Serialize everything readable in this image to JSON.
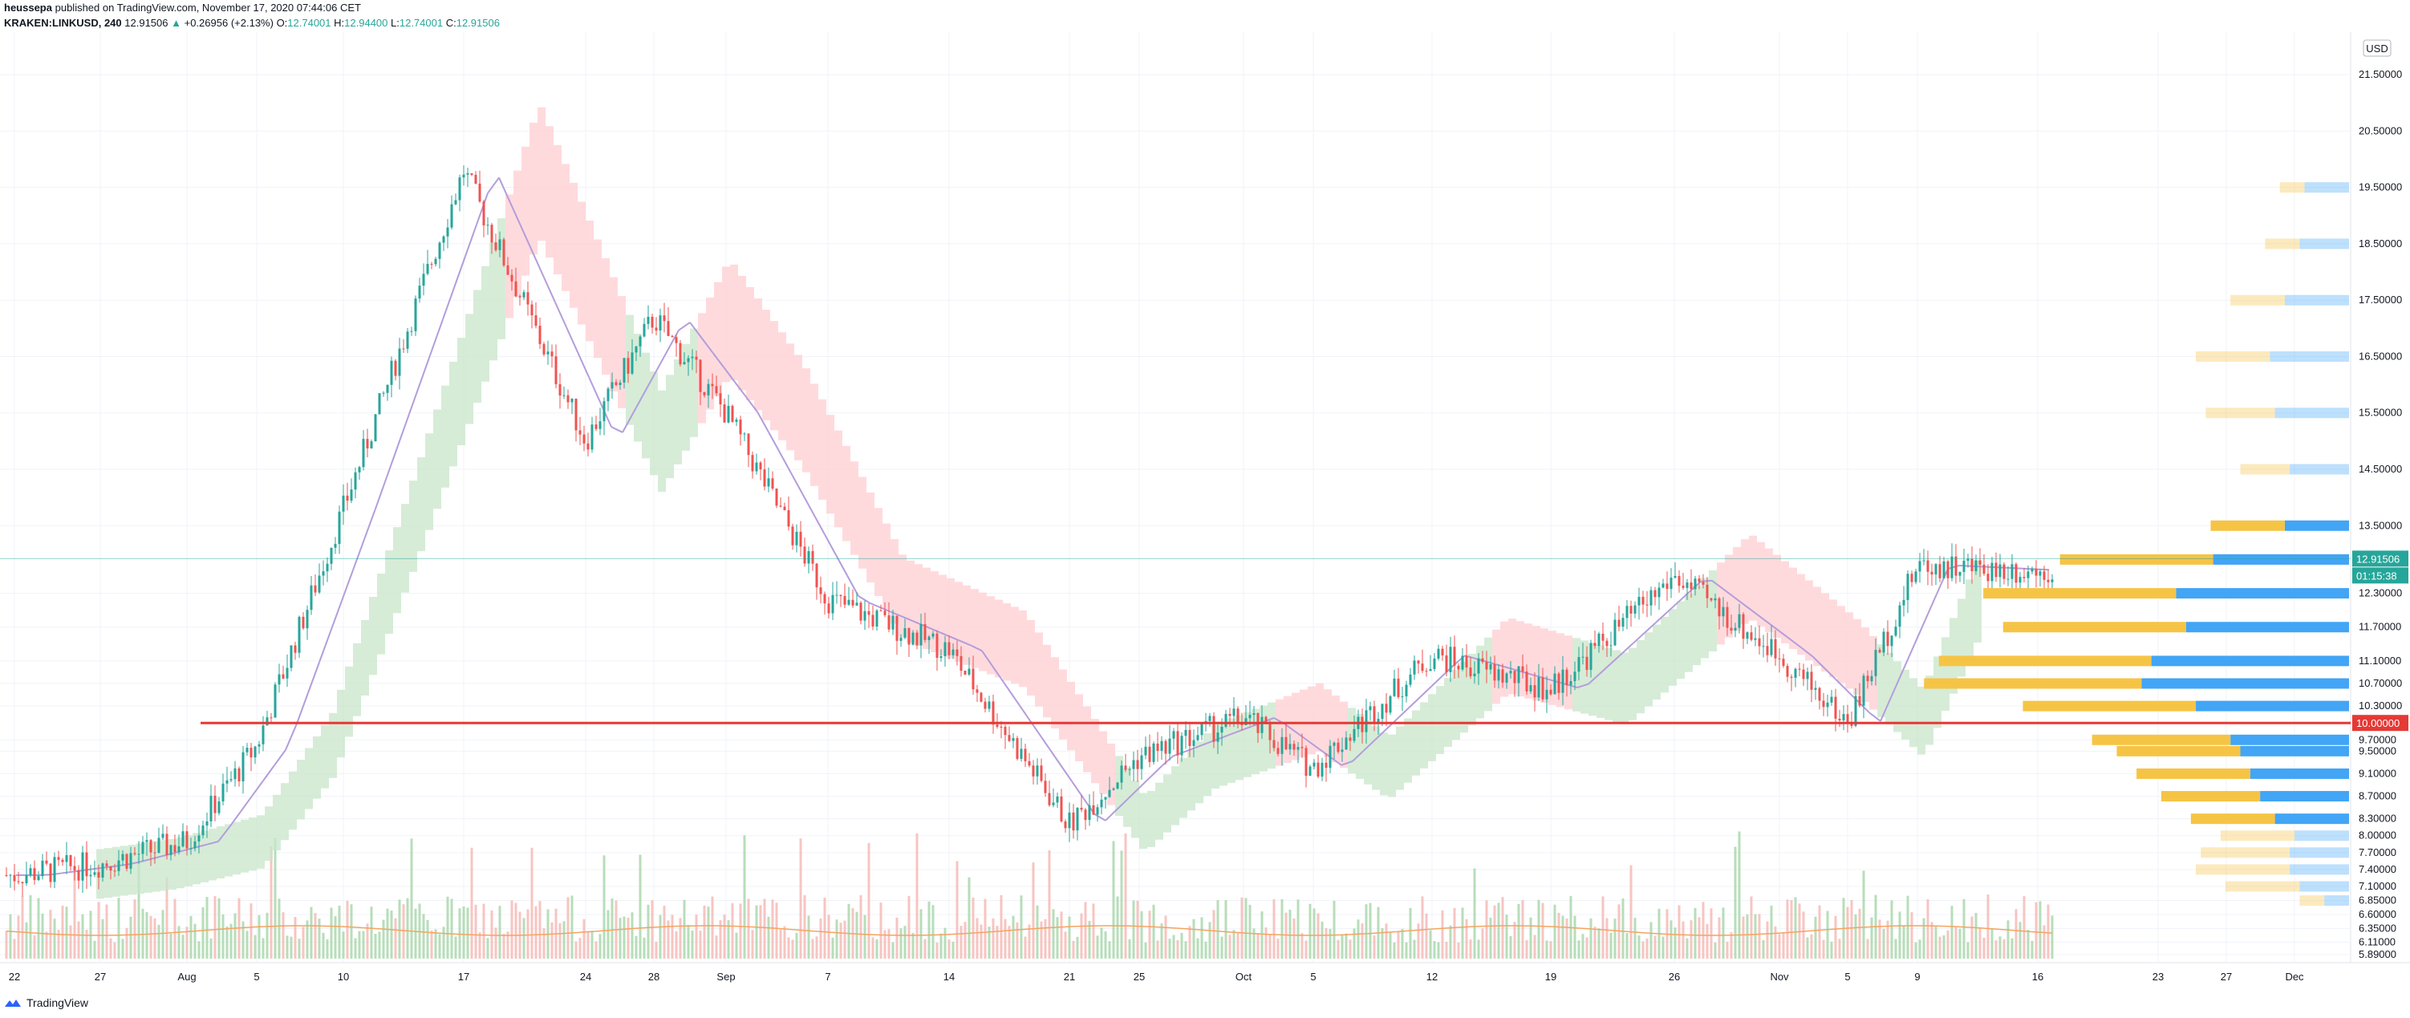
{
  "header": {
    "publisher": "heussepa",
    "published_text": "published on TradingView.com, November 17, 2020 07:44:06 CET",
    "symbol": "KRAKEN:LINKUSD, 240",
    "last": "12.91506",
    "change": "+0.26956 (+2.13%)",
    "o_label": "O:",
    "o_value": "12.74001",
    "h_label": "H:",
    "h_value": "12.94400",
    "l_label": "L:",
    "l_value": "12.74001",
    "c_label": "C:",
    "c_value": "12.91506"
  },
  "currency_label": "USD",
  "footer": {
    "brand": "TradingView"
  },
  "colors": {
    "up": "#26a69a",
    "down": "#ef5350",
    "support_line": "#e53935",
    "cloud_bull": "#c8e6c9",
    "cloud_bear": "#ffcdd2",
    "kijun": "#b39ddb",
    "vp_up": "#f6c445",
    "vp_down": "#42a5f5",
    "volume_ma": "#f4a460"
  },
  "chart_data": {
    "type": "candlestick",
    "symbol": "KRAKEN:LINKUSD",
    "interval": "240",
    "x_ticks": [
      "22",
      "27",
      "Aug",
      "5",
      "10",
      "17",
      "24",
      "28",
      "Sep",
      "7",
      "14",
      "21",
      "25",
      "Oct",
      "5",
      "12",
      "19",
      "26",
      "Nov",
      "5",
      "9",
      "16",
      "23",
      "27",
      "Dec"
    ],
    "y_ticks": [
      "21.50000",
      "20.50000",
      "19.50000",
      "18.50000",
      "17.50000",
      "16.50000",
      "15.50000",
      "14.50000",
      "13.50000",
      "12.30000",
      "11.70000",
      "11.10000",
      "10.70000",
      "10.30000",
      "9.70000",
      "9.50000",
      "9.10000",
      "8.70000",
      "8.30000",
      "8.00000",
      "7.70000",
      "7.40000",
      "7.10000",
      "6.85000",
      "6.60000",
      "6.35000",
      "6.11000",
      "5.89000"
    ],
    "ylim": [
      5.89,
      22.0
    ],
    "last_price": 12.91506,
    "last_price_label": "12.91506",
    "countdown_label": "01:15:38",
    "horizontal_line": {
      "value": 10.0,
      "label": "10.00000"
    },
    "price_path": [
      [
        "22",
        7.3
      ],
      [
        "27",
        7.5
      ],
      [
        "Aug",
        7.9
      ],
      [
        "5",
        9.6
      ],
      [
        "10",
        13.8
      ],
      [
        "17",
        19.8
      ],
      [
        "24",
        15.0
      ],
      [
        "28",
        17.2
      ],
      [
        "Sep",
        15.5
      ],
      [
        "7",
        12.2
      ],
      [
        "14",
        11.3
      ],
      [
        "21",
        8.2
      ],
      [
        "25",
        9.4
      ],
      [
        "Oct",
        10.1
      ],
      [
        "5",
        9.2
      ],
      [
        "12",
        11.2
      ],
      [
        "19",
        10.6
      ],
      [
        "26",
        12.6
      ],
      [
        "Nov",
        11.2
      ],
      [
        "5",
        10.0
      ],
      [
        "9",
        12.8
      ],
      [
        "16",
        12.7
      ]
    ],
    "volume_profile": [
      {
        "price": 19.5,
        "up": 0.1,
        "down": 0.18
      },
      {
        "price": 18.5,
        "up": 0.14,
        "down": 0.2
      },
      {
        "price": 17.5,
        "up": 0.22,
        "down": 0.26
      },
      {
        "price": 16.5,
        "up": 0.3,
        "down": 0.32
      },
      {
        "price": 15.5,
        "up": 0.28,
        "down": 0.3
      },
      {
        "price": 14.5,
        "up": 0.2,
        "down": 0.24
      },
      {
        "price": 13.5,
        "up": 0.3,
        "down": 0.26
      },
      {
        "price": 12.9,
        "up": 0.62,
        "down": 0.55
      },
      {
        "price": 12.3,
        "up": 0.78,
        "down": 0.7
      },
      {
        "price": 11.7,
        "up": 0.74,
        "down": 0.66
      },
      {
        "price": 11.1,
        "up": 0.86,
        "down": 0.8
      },
      {
        "price": 10.7,
        "up": 0.88,
        "down": 0.84
      },
      {
        "price": 10.3,
        "up": 0.7,
        "down": 0.62
      },
      {
        "price": 9.7,
        "up": 0.56,
        "down": 0.48
      },
      {
        "price": 9.5,
        "up": 0.5,
        "down": 0.44
      },
      {
        "price": 9.1,
        "up": 0.46,
        "down": 0.4
      },
      {
        "price": 8.7,
        "up": 0.4,
        "down": 0.36
      },
      {
        "price": 8.3,
        "up": 0.34,
        "down": 0.3
      },
      {
        "price": 8.0,
        "up": 0.3,
        "down": 0.22
      },
      {
        "price": 7.7,
        "up": 0.36,
        "down": 0.24
      },
      {
        "price": 7.4,
        "up": 0.38,
        "down": 0.24
      },
      {
        "price": 7.1,
        "up": 0.3,
        "down": 0.2
      },
      {
        "price": 6.85,
        "up": 0.1,
        "down": 0.1
      }
    ],
    "grid": true
  }
}
